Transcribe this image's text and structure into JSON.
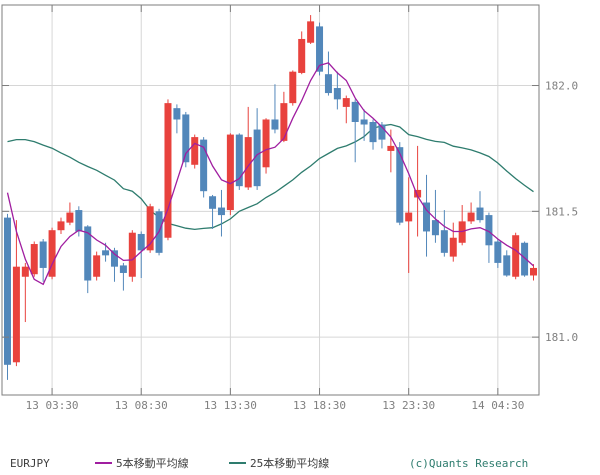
{
  "chart": {
    "symbol": "EURJPY",
    "legend": [
      {
        "label": "5本移動平均線",
        "color": "#a01ea0"
      },
      {
        "label": "25本移動平均線",
        "color": "#2e7c6e"
      }
    ],
    "copyright": "(c)Quants Research"
  },
  "colors": {
    "up_candle": "#e8423d",
    "down_candle": "#5287ba",
    "ma5": "#a01ea0",
    "ma25": "#2e7c6e",
    "grid": "#d6d6d6",
    "border": "#7d7d7d",
    "axis_text": "#808080",
    "legend_text": "#3c3c3c",
    "copyright_text": "#2e7c6e",
    "background": "#ffffff"
  },
  "chart_data": {
    "type": "candlestick",
    "symbol": "EURJPY",
    "interval": "30min",
    "grid": true,
    "y_axis_side": "right",
    "ylim": [
      180.77,
      182.32
    ],
    "yticks": [
      {
        "value": 182.0,
        "label": "182.0"
      },
      {
        "value": 181.5,
        "label": "181.5"
      },
      {
        "value": 181.0,
        "label": "181.0"
      }
    ],
    "xticks": [
      {
        "index": 5,
        "label": "13 03:30"
      },
      {
        "index": 15,
        "label": "13 08:30"
      },
      {
        "index": 25,
        "label": "13 13:30"
      },
      {
        "index": 35,
        "label": "13 18:30"
      },
      {
        "index": 45,
        "label": "13 23:30"
      },
      {
        "index": 55,
        "label": "14 04:30"
      }
    ],
    "candles": {
      "columns": [
        "time",
        "open",
        "high",
        "low",
        "close"
      ],
      "rows": [
        [
          "13 01:00",
          181.475,
          181.49,
          180.83,
          180.89
        ],
        [
          "13 01:30",
          180.9,
          181.465,
          180.885,
          181.28
        ],
        [
          "13 02:00",
          181.24,
          181.295,
          181.06,
          181.28
        ],
        [
          "13 02:30",
          181.25,
          181.38,
          181.24,
          181.37
        ],
        [
          "13 03:00",
          181.38,
          181.39,
          181.22,
          181.275
        ],
        [
          "13 03:30",
          181.24,
          181.435,
          181.23,
          181.425
        ],
        [
          "13 04:00",
          181.425,
          181.475,
          181.41,
          181.46
        ],
        [
          "13 04:30",
          181.455,
          181.535,
          181.445,
          181.495
        ],
        [
          "13 05:00",
          181.505,
          181.52,
          181.4,
          181.42
        ],
        [
          "13 05:30",
          181.44,
          181.445,
          181.175,
          181.225
        ],
        [
          "13 06:00",
          181.24,
          181.34,
          181.225,
          181.325
        ],
        [
          "13 06:30",
          181.345,
          181.375,
          181.3,
          181.325
        ],
        [
          "13 07:00",
          181.345,
          181.355,
          181.22,
          181.28
        ],
        [
          "13 07:30",
          181.285,
          181.295,
          181.185,
          181.255
        ],
        [
          "13 08:00",
          181.24,
          181.425,
          181.22,
          181.415
        ],
        [
          "13 08:30",
          181.41,
          181.42,
          181.235,
          181.345
        ],
        [
          "13 09:00",
          181.345,
          181.53,
          181.335,
          181.52
        ],
        [
          "13 09:30",
          181.5,
          181.51,
          181.325,
          181.335
        ],
        [
          "13 10:00",
          181.395,
          181.945,
          181.385,
          181.93
        ],
        [
          "13 10:30",
          181.91,
          181.925,
          181.81,
          181.865
        ],
        [
          "13 11:00",
          181.885,
          181.895,
          181.675,
          181.695
        ],
        [
          "13 11:30",
          181.685,
          181.805,
          181.67,
          181.795
        ],
        [
          "13 12:00",
          181.785,
          181.795,
          181.555,
          181.58
        ],
        [
          "13 12:30",
          181.56,
          181.565,
          181.43,
          181.51
        ],
        [
          "13 13:00",
          181.515,
          181.585,
          181.4,
          181.485
        ],
        [
          "13 13:30",
          181.505,
          181.81,
          181.485,
          181.805
        ],
        [
          "13 14:00",
          181.805,
          181.81,
          181.585,
          181.6
        ],
        [
          "13 14:30",
          181.595,
          181.915,
          181.585,
          181.795
        ],
        [
          "13 15:00",
          181.825,
          181.91,
          181.585,
          181.6
        ],
        [
          "13 15:30",
          181.675,
          181.87,
          181.65,
          181.865
        ],
        [
          "13 16:00",
          181.865,
          182.005,
          181.81,
          181.825
        ],
        [
          "13 16:30",
          181.78,
          181.975,
          181.775,
          181.93
        ],
        [
          "13 17:00",
          181.93,
          182.06,
          181.92,
          182.055
        ],
        [
          "13 17:30",
          182.05,
          182.215,
          182.045,
          182.185
        ],
        [
          "13 18:00",
          182.17,
          182.28,
          182.165,
          182.255
        ],
        [
          "13 18:30",
          182.235,
          182.25,
          182.04,
          182.055
        ],
        [
          "13 19:00",
          182.045,
          182.135,
          181.96,
          181.97
        ],
        [
          "13 19:30",
          181.99,
          182.055,
          181.905,
          181.945
        ],
        [
          "13 20:00",
          181.915,
          181.96,
          181.85,
          181.95
        ],
        [
          "13 20:30",
          181.935,
          181.945,
          181.695,
          181.855
        ],
        [
          "13 21:00",
          181.865,
          181.905,
          181.78,
          181.845
        ],
        [
          "13 21:30",
          181.855,
          181.865,
          181.745,
          181.775
        ],
        [
          "13 22:00",
          181.845,
          181.855,
          181.75,
          181.785
        ],
        [
          "13 22:30",
          181.74,
          181.825,
          181.655,
          181.76
        ],
        [
          "13 23:00",
          181.755,
          181.775,
          181.445,
          181.455
        ],
        [
          "13 23:30",
          181.46,
          181.635,
          181.255,
          181.495
        ],
        [
          "14 00:00",
          181.555,
          181.76,
          181.4,
          181.585
        ],
        [
          "14 00:30",
          181.535,
          181.645,
          181.32,
          181.42
        ],
        [
          "14 01:00",
          181.465,
          181.585,
          181.375,
          181.405
        ],
        [
          "14 01:30",
          181.425,
          181.505,
          181.32,
          181.335
        ],
        [
          "14 02:00",
          181.32,
          181.455,
          181.3,
          181.395
        ],
        [
          "14 02:30",
          181.375,
          181.525,
          181.365,
          181.46
        ],
        [
          "14 03:00",
          181.46,
          181.535,
          181.45,
          181.495
        ],
        [
          "14 03:30",
          181.515,
          181.58,
          181.455,
          181.465
        ],
        [
          "14 04:00",
          181.485,
          181.495,
          181.295,
          181.365
        ],
        [
          "14 04:30",
          181.38,
          181.39,
          181.275,
          181.295
        ],
        [
          "14 05:00",
          181.325,
          181.345,
          181.24,
          181.245
        ],
        [
          "14 05:30",
          181.24,
          181.415,
          181.23,
          181.405
        ],
        [
          "14 06:00",
          181.375,
          181.38,
          181.24,
          181.245
        ],
        [
          "14 06:30",
          181.245,
          181.29,
          181.225,
          181.275
        ]
      ]
    },
    "series": [
      {
        "name": "5本移動平均線",
        "color": "#a01ea0",
        "values": [
          181.574,
          181.42,
          181.31,
          181.23,
          181.21,
          181.29,
          181.36,
          181.4,
          181.425,
          181.415,
          181.386,
          181.365,
          181.33,
          181.305,
          181.307,
          181.34,
          181.37,
          181.42,
          181.51,
          181.62,
          181.73,
          181.77,
          181.755,
          181.68,
          181.625,
          181.61,
          181.63,
          181.68,
          181.725,
          181.745,
          181.755,
          181.79,
          181.87,
          181.94,
          182.02,
          182.08,
          182.09,
          182.05,
          182.02,
          181.95,
          181.9,
          181.87,
          181.835,
          181.795,
          181.73,
          181.65,
          181.56,
          181.505,
          181.47,
          181.44,
          181.42,
          181.42,
          181.43,
          181.435,
          181.42,
          181.39,
          181.365,
          181.345,
          181.315,
          181.283
        ]
      },
      {
        "name": "25本移動平均線",
        "color": "#2e7c6e",
        "values": [
          181.777,
          181.785,
          181.785,
          181.777,
          181.763,
          181.751,
          181.732,
          181.715,
          181.695,
          181.678,
          181.663,
          181.643,
          181.624,
          181.59,
          181.58,
          181.55,
          181.505,
          181.475,
          181.452,
          181.443,
          181.433,
          181.428,
          181.432,
          181.435,
          181.45,
          181.47,
          181.5,
          181.515,
          181.53,
          181.555,
          181.575,
          181.6,
          181.625,
          181.655,
          181.68,
          181.71,
          181.73,
          181.75,
          181.76,
          181.776,
          181.797,
          181.83,
          181.84,
          181.845,
          181.835,
          181.805,
          181.797,
          181.786,
          181.778,
          181.774,
          181.759,
          181.752,
          181.744,
          181.732,
          181.718,
          181.692,
          181.66,
          181.63,
          181.603,
          181.578
        ]
      }
    ]
  }
}
